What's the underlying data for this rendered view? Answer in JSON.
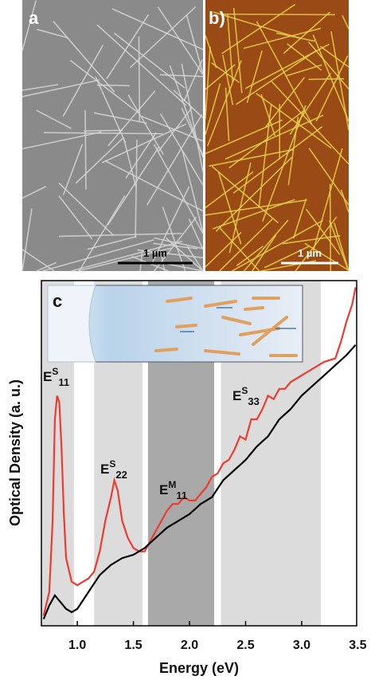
{
  "panels": [
    {
      "label": "a",
      "scale_bar": "1 µm"
    },
    {
      "label": "b)",
      "scale_bar": "1 µm"
    }
  ],
  "chart_data": {
    "type": "line",
    "panel_label": "c",
    "xlabel": "Energy (eV)",
    "ylabel": "Optical Density (a. u.)",
    "xlim": [
      0.68,
      3.49
    ],
    "ylim": [
      0,
      1.02
    ],
    "xticks": [
      {
        "value": 1,
        "label": "1.0"
      },
      1.5,
      {
        "value": 2,
        "label": "2.0"
      },
      2.5,
      {
        "value": 3,
        "label": "3.0"
      },
      3.5
    ],
    "bands": [
      {
        "from": 0.68,
        "to": 0.97,
        "color": "#dcdcdc"
      },
      {
        "from": 1.15,
        "to": 1.58,
        "color": "#dcdcdc"
      },
      {
        "from": 1.63,
        "to": 2.22,
        "color": "#a9a9a9"
      },
      {
        "from": 2.28,
        "to": 3.17,
        "color": "#dcdcdc"
      }
    ],
    "series": [
      {
        "color": "#ee3b2e",
        "x": [
          0.7,
          0.75,
          0.78,
          0.8,
          0.82,
          0.84,
          0.86,
          0.88,
          0.9,
          0.95,
          1.0,
          1.05,
          1.1,
          1.15,
          1.2,
          1.25,
          1.3,
          1.33,
          1.36,
          1.4,
          1.45,
          1.5,
          1.55,
          1.6,
          1.65,
          1.7,
          1.75,
          1.8,
          1.85,
          1.9,
          1.95,
          2.0,
          2.05,
          2.1,
          2.15,
          2.2,
          2.25,
          2.3,
          2.35,
          2.4,
          2.45,
          2.5,
          2.55,
          2.6,
          2.65,
          2.7,
          2.75,
          2.8,
          2.85,
          2.9,
          3.0,
          3.1,
          3.2,
          3.3,
          3.35,
          3.4,
          3.45,
          3.48
        ],
        "values": [
          0.03,
          0.1,
          0.31,
          0.61,
          0.68,
          0.66,
          0.52,
          0.33,
          0.2,
          0.13,
          0.12,
          0.13,
          0.14,
          0.16,
          0.22,
          0.31,
          0.38,
          0.43,
          0.4,
          0.31,
          0.26,
          0.23,
          0.22,
          0.22,
          0.25,
          0.28,
          0.31,
          0.34,
          0.36,
          0.36,
          0.38,
          0.37,
          0.37,
          0.39,
          0.41,
          0.44,
          0.45,
          0.48,
          0.49,
          0.52,
          0.56,
          0.55,
          0.61,
          0.61,
          0.64,
          0.68,
          0.67,
          0.7,
          0.7,
          0.72,
          0.74,
          0.76,
          0.78,
          0.79,
          0.84,
          0.9,
          0.95,
          1.0
        ]
      },
      {
        "color": "#000000",
        "x": [
          0.7,
          0.75,
          0.8,
          0.85,
          0.9,
          0.95,
          1.0,
          1.1,
          1.2,
          1.3,
          1.4,
          1.5,
          1.6,
          1.7,
          1.8,
          1.9,
          2.0,
          2.1,
          2.2,
          2.3,
          2.4,
          2.5,
          2.6,
          2.7,
          2.8,
          2.9,
          3.0,
          3.1,
          3.2,
          3.3,
          3.4,
          3.48
        ],
        "values": [
          0.02,
          0.06,
          0.09,
          0.07,
          0.05,
          0.04,
          0.05,
          0.1,
          0.15,
          0.18,
          0.2,
          0.21,
          0.23,
          0.26,
          0.29,
          0.31,
          0.33,
          0.36,
          0.38,
          0.43,
          0.46,
          0.49,
          0.53,
          0.56,
          0.61,
          0.64,
          0.68,
          0.71,
          0.74,
          0.77,
          0.8,
          0.83
        ]
      }
    ],
    "annotations": [
      {
        "base": "E",
        "sup": "S",
        "sub": "11"
      },
      {
        "base": "E",
        "sup": "S",
        "sub": "22"
      },
      {
        "base": "E",
        "sup": "M",
        "sub": "11"
      },
      {
        "base": "E",
        "sup": "S",
        "sub": "33"
      }
    ]
  }
}
